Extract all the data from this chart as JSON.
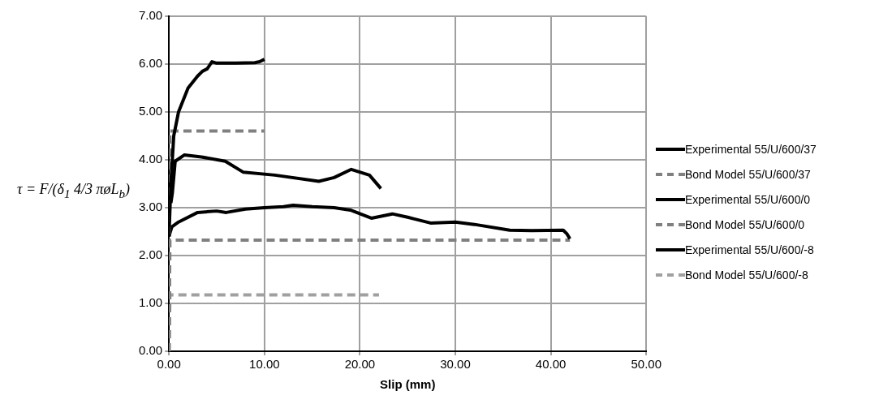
{
  "chart_data": {
    "type": "line",
    "xlabel": "Slip (mm)",
    "ylabel": "τ = F/(δ$_{1}$ 4/3 πøL$_{b}$)",
    "xlim": [
      0,
      50
    ],
    "ylim": [
      0,
      7
    ],
    "xticks": [
      {
        "value": 0,
        "label": "0.00"
      },
      {
        "value": 10,
        "label": "10.00"
      },
      {
        "value": 20,
        "label": "20.00"
      },
      {
        "value": 30,
        "label": "30.00"
      },
      {
        "value": 40,
        "label": "40.00"
      },
      {
        "value": 50,
        "label": "50.00"
      }
    ],
    "yticks": [
      {
        "value": 0,
        "label": "0.00"
      },
      {
        "value": 1,
        "label": "1.00"
      },
      {
        "value": 2,
        "label": "2.00"
      },
      {
        "value": 3,
        "label": "3.00"
      },
      {
        "value": 4,
        "label": "4.00"
      },
      {
        "value": 5,
        "label": "5.00"
      },
      {
        "value": 6,
        "label": "6.00"
      },
      {
        "value": 7,
        "label": "7.00"
      }
    ],
    "grid": true,
    "legend": "right",
    "marker": "none",
    "series": [
      {
        "name": "Experimental 55/U/600/37",
        "color": "#000000",
        "line_style": "solid",
        "x": [
          0,
          0.2,
          0.5,
          1,
          2,
          3,
          3.5,
          4,
          4.5,
          5,
          7,
          9,
          9.5,
          10
        ],
        "values": [
          2.4,
          3.5,
          4.5,
          5.0,
          5.5,
          5.75,
          5.85,
          5.9,
          6.05,
          6.02,
          6.02,
          6.03,
          6.05,
          6.1
        ]
      },
      {
        "name": "Bond Model 55/U/600/37",
        "color": "#808080",
        "line_style": "dashed",
        "x": [
          0,
          0.1,
          10
        ],
        "values": [
          0,
          4.6,
          4.6
        ]
      },
      {
        "name": "Experimental 55/U/600/0",
        "color": "#000000",
        "line_style": "solid",
        "x": [
          0,
          0.3,
          1,
          3,
          5,
          6,
          8,
          10,
          12,
          13,
          15,
          17.3,
          19,
          21.2,
          23.4,
          25,
          27.4,
          30,
          32,
          35.7,
          38,
          41.3,
          41.7,
          42
        ],
        "values": [
          2.4,
          2.6,
          2.7,
          2.9,
          2.93,
          2.9,
          2.97,
          3.0,
          3.02,
          3.05,
          3.02,
          3.0,
          2.95,
          2.78,
          2.87,
          2.8,
          2.68,
          2.7,
          2.65,
          2.53,
          2.52,
          2.53,
          2.45,
          2.35
        ]
      },
      {
        "name": "Bond Model 55/U/600/0",
        "color": "#808080",
        "line_style": "dashed",
        "x": [
          0,
          0.1,
          42
        ],
        "values": [
          0,
          2.32,
          2.32
        ]
      },
      {
        "name": "Experimental 55/U/600/-8",
        "color": "#000000",
        "line_style": "solid",
        "x": [
          0.2,
          0.35,
          0.65,
          1.6,
          3.4,
          5.9,
          7.8,
          11.1,
          15.7,
          17.3,
          19.1,
          21,
          22.2
        ],
        "values": [
          3.1,
          3.3,
          3.97,
          4.1,
          4.06,
          3.97,
          3.74,
          3.68,
          3.55,
          3.63,
          3.8,
          3.68,
          3.4
        ]
      },
      {
        "name": "Bond Model 55/U/600/-8",
        "color": "#a0a0a0",
        "line_style": "dashed",
        "x": [
          0,
          0.1,
          22
        ],
        "values": [
          0,
          1.18,
          1.18
        ]
      }
    ]
  }
}
